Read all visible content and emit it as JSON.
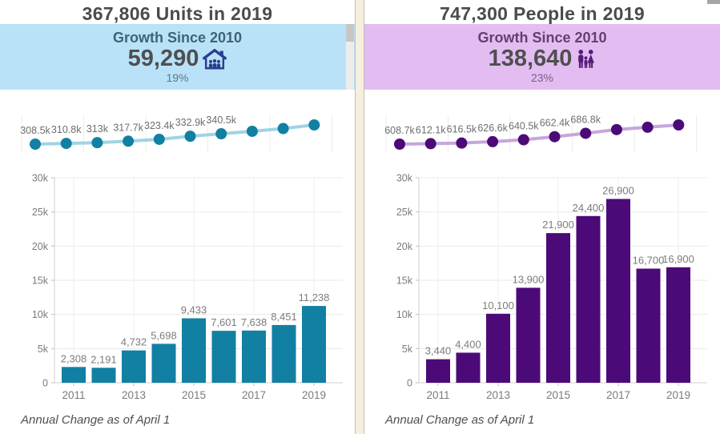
{
  "left_panel": {
    "title": "367,806 Units in 2019",
    "growth_label": "Growth Since 2010",
    "growth_value": "59,290",
    "growth_percent": "19%",
    "footnote": "Annual Change as of April 1",
    "icon": "house-units-icon",
    "colors": {
      "header_bg": "#b9e2f8",
      "heading": "#3f6373",
      "percent_text": "#5b7886",
      "value_text": "#4f4f4f",
      "icon": "#2c3d92",
      "bar": "#1180a3",
      "dot": "#1180a3",
      "line": "#9fd4e4"
    }
  },
  "right_panel": {
    "title": "747,300 People in 2019",
    "growth_label": "Growth Since 2010",
    "growth_value": "138,640",
    "growth_percent": "23%",
    "footnote": "Annual Change as of April 1",
    "icon": "family-people-icon",
    "colors": {
      "header_bg": "#e3bdf2",
      "heading": "#653f71",
      "percent_text": "#7b5d85",
      "value_text": "#4f4f4f",
      "icon": "#571c7b",
      "bar": "#4c0a78",
      "dot": "#4c0a78",
      "line": "#c6a6db"
    }
  },
  "chart_data": [
    {
      "id": "units-total-line",
      "panel": "left",
      "type": "line",
      "unit": "thousands",
      "x": [
        2010,
        2011,
        2012,
        2013,
        2014,
        2015,
        2016,
        2017,
        2018,
        2019
      ],
      "values": [
        308.5,
        310.8,
        313.0,
        317.7,
        323.4,
        332.9,
        340.5,
        348.1,
        356.6,
        367.8
      ],
      "point_labels": [
        "308.5k",
        "310.8k",
        "313k",
        "317.7k",
        "323.4k",
        "332.9k",
        "340.5k",
        "",
        "",
        ""
      ],
      "legend": "none",
      "grid": "faint-vertical"
    },
    {
      "id": "units-annual-change",
      "panel": "left",
      "type": "bar",
      "categories": [
        2011,
        2012,
        2013,
        2014,
        2015,
        2016,
        2017,
        2018,
        2019
      ],
      "values": [
        2308,
        2191,
        4732,
        5698,
        9433,
        7601,
        7638,
        8451,
        11238
      ],
      "bar_labels": [
        "2,308",
        "2,191",
        "4,732",
        "5,698",
        "9,433",
        "7,601",
        "7,638",
        "8,451",
        "11,238"
      ],
      "x_tick_labels": [
        "2011",
        "2013",
        "2015",
        "2017",
        "2019"
      ],
      "y_tick_labels": [
        "0",
        "5k",
        "10k",
        "15k",
        "20k",
        "25k",
        "30k"
      ],
      "ylim": [
        0,
        30000
      ],
      "xlabel": "",
      "ylabel": "",
      "grid": true,
      "legend": "none"
    },
    {
      "id": "people-total-line",
      "panel": "right",
      "type": "line",
      "unit": "thousands",
      "x": [
        2010,
        2011,
        2012,
        2013,
        2014,
        2015,
        2016,
        2017,
        2018,
        2019
      ],
      "values": [
        608.7,
        612.1,
        616.5,
        626.6,
        640.5,
        662.4,
        686.8,
        713.7,
        730.4,
        747.3
      ],
      "point_labels": [
        "608.7k",
        "612.1k",
        "616.5k",
        "626.6k",
        "640.5k",
        "662.4k",
        "686.8k",
        "",
        "",
        ""
      ],
      "legend": "none",
      "grid": "faint-vertical"
    },
    {
      "id": "people-annual-change",
      "panel": "right",
      "type": "bar",
      "categories": [
        2011,
        2012,
        2013,
        2014,
        2015,
        2016,
        2017,
        2018,
        2019
      ],
      "values": [
        3440,
        4400,
        10100,
        13900,
        21900,
        24400,
        26900,
        16700,
        16900
      ],
      "bar_labels": [
        "3,440",
        "4,400",
        "10,100",
        "13,900",
        "21,900",
        "24,400",
        "26,900",
        "16,700",
        "16,900"
      ],
      "x_tick_labels": [
        "2011",
        "2013",
        "2015",
        "2017",
        "2019"
      ],
      "y_tick_labels": [
        "0",
        "5k",
        "10k",
        "15k",
        "20k",
        "25k",
        "30k"
      ],
      "ylim": [
        0,
        30000
      ],
      "xlabel": "",
      "ylabel": "",
      "grid": true,
      "legend": "none"
    }
  ]
}
